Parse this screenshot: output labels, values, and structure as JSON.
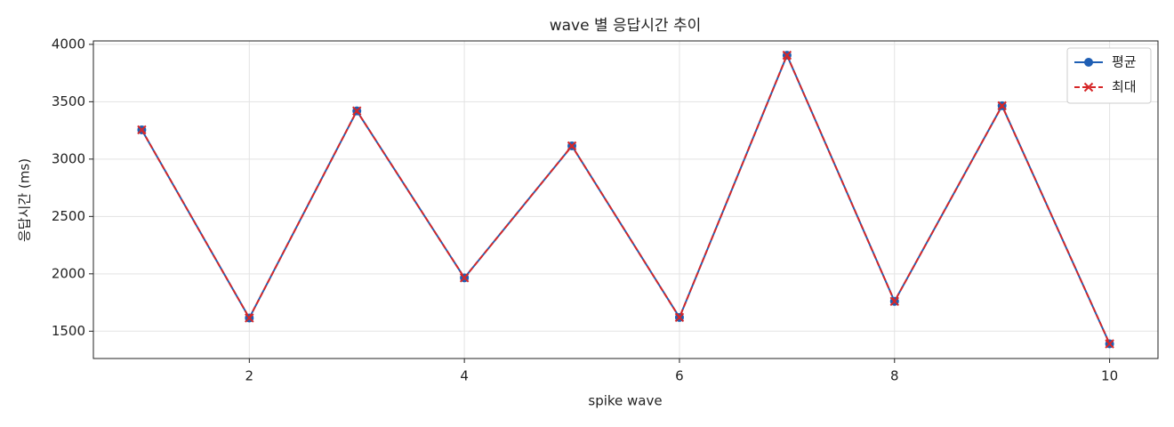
{
  "chart_data": {
    "type": "line",
    "title": "wave 별 응답시간 추이",
    "x_label": "spike wave",
    "y_label": "응답시간 (ms)",
    "x": [
      1,
      2,
      3,
      4,
      5,
      6,
      7,
      8,
      9,
      10
    ],
    "series": [
      {
        "name": "평균",
        "color": "#1f5fb4",
        "marker": "circle",
        "dash": "solid",
        "values": [
          3255,
          1615,
          3420,
          1965,
          3115,
          1620,
          3905,
          1760,
          3465,
          1390
        ]
      },
      {
        "name": "최대",
        "color": "#d62728",
        "marker": "x",
        "dash": "dashed",
        "values": [
          3255,
          1615,
          3420,
          1965,
          3115,
          1620,
          3905,
          1760,
          3465,
          1390
        ]
      }
    ],
    "xlim": [
      0.55,
      10.45
    ],
    "ylim": [
      1262,
      4030
    ],
    "xticks": [
      2,
      4,
      6,
      8,
      10
    ],
    "yticks": [
      1500,
      2000,
      2500,
      3000,
      3500,
      4000
    ],
    "grid": true,
    "legend": "upper right"
  }
}
